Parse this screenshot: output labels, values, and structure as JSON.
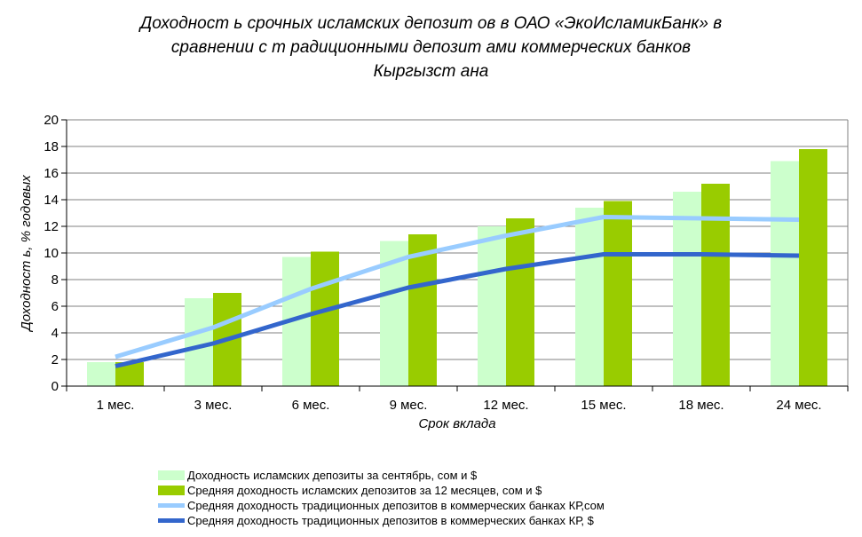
{
  "title": "Доходност ь срочных исламских депозит ов в ОАО «ЭкоИсламикБанк» в\nсравнении с т радиционными депозит ами коммерческих банков\nКыргызст ана",
  "chart_data": {
    "type": "bar",
    "title": "Доходност ь срочных исламских депозит ов в ОАО «ЭкоИсламикБанк» в сравнении с т радиционными депозит ами коммерческих банков Кыргызст ана",
    "xlabel": "Срок вклада",
    "ylabel": "Доходност ь, % годовых",
    "ylim": [
      0,
      20
    ],
    "ytick_step": 2,
    "grid": true,
    "legend_position": "bottom",
    "categories": [
      "1 мес.",
      "3 мес.",
      "6 мес.",
      "9 мес.",
      "12 мес.",
      "15 мес.",
      "18 мес.",
      "24 мес."
    ],
    "series": [
      {
        "name": "Доходность исламских депозиты за сентябрь, сом и $",
        "type": "bar",
        "color": "#ccffcc",
        "values": [
          1.8,
          6.6,
          9.7,
          10.9,
          12.0,
          13.4,
          14.6,
          16.9
        ]
      },
      {
        "name": "Средняя доходность исламских депозитов за 12 месяцев, сом и $",
        "type": "bar",
        "color": "#99cc00",
        "values": [
          1.8,
          7.0,
          10.1,
          11.4,
          12.6,
          13.9,
          15.2,
          17.8
        ]
      },
      {
        "name": "Средняя доходность традиционных депозитов в коммерческих банках КР,сом",
        "type": "line",
        "color": "#99ccff",
        "values": [
          2.2,
          4.4,
          7.3,
          9.7,
          11.3,
          12.7,
          12.6,
          12.5
        ]
      },
      {
        "name": "Средняя доходность традиционных депозитов в коммерческих банках КР, $",
        "type": "line",
        "color": "#3366cc",
        "values": [
          1.5,
          3.2,
          5.4,
          7.4,
          8.8,
          9.9,
          9.9,
          9.8
        ]
      }
    ],
    "colors": {
      "gridline": "#808080",
      "axis": "#000000",
      "background": "#ffffff",
      "text": "#000000"
    }
  }
}
